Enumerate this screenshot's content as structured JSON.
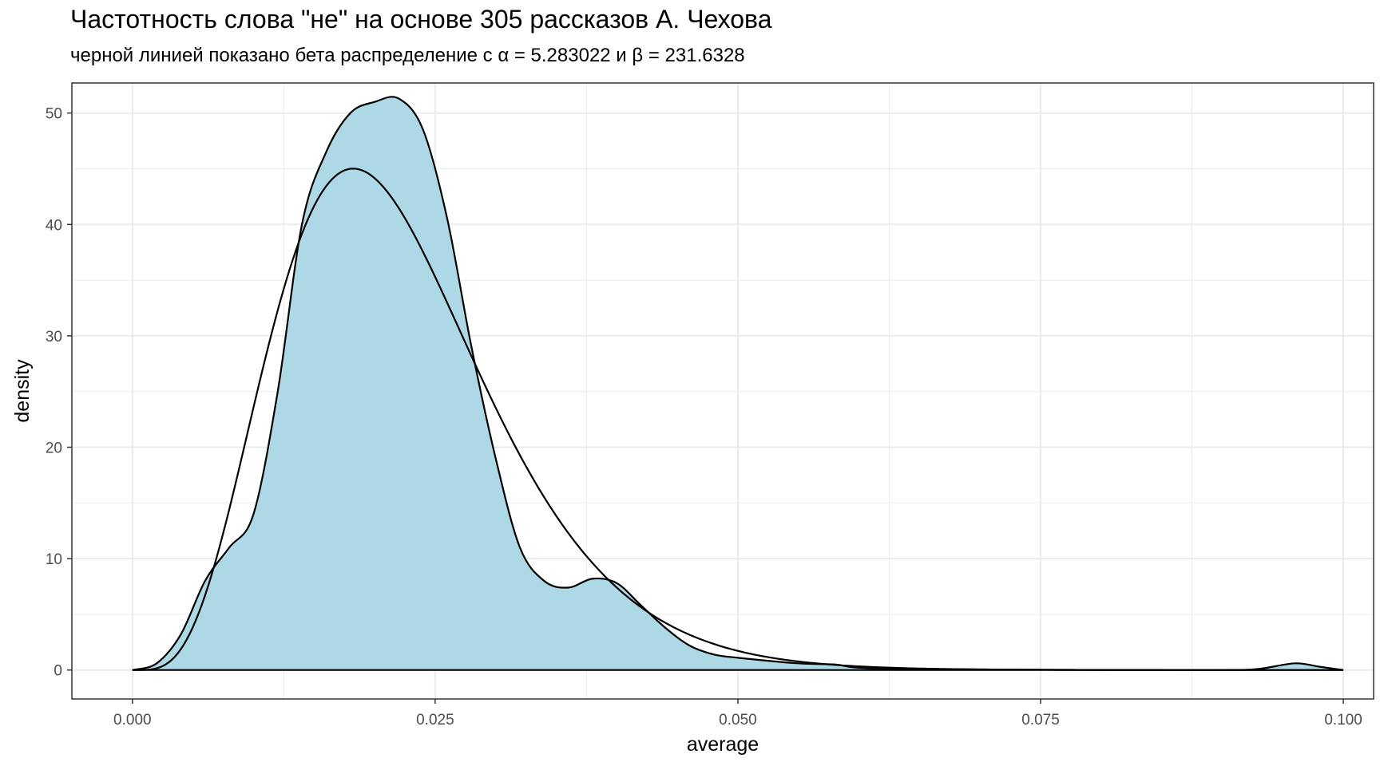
{
  "chart_data": {
    "type": "area",
    "title": "Частотность слова \"не\" на основе 305 рассказов А. Чехова",
    "subtitle": "черной линией показано бета распределение с α = 5.283022 и β = 231.6328",
    "xlabel": "average",
    "ylabel": "density",
    "xlim": [
      -0.005,
      0.1025
    ],
    "ylim": [
      -2.6,
      52.7
    ],
    "x_ticks": [
      0.0,
      0.025,
      0.05,
      0.075,
      0.1
    ],
    "x_tick_labels": [
      "0.000",
      "0.025",
      "0.050",
      "0.075",
      "0.100"
    ],
    "y_ticks": [
      0,
      10,
      20,
      30,
      40,
      50
    ],
    "y_tick_labels": [
      "0",
      "10",
      "20",
      "30",
      "40",
      "50"
    ],
    "grid": true,
    "colors": {
      "fill": "#add8e6",
      "line": "#000000",
      "grid": "#ebebeb",
      "panel_border": "#333333"
    },
    "series": [
      {
        "kind": "density",
        "x": [
          0.0,
          0.002,
          0.004,
          0.006,
          0.008,
          0.01,
          0.012,
          0.014,
          0.016,
          0.018,
          0.02,
          0.022,
          0.024,
          0.026,
          0.028,
          0.03,
          0.032,
          0.034,
          0.036,
          0.038,
          0.04,
          0.042,
          0.044,
          0.046,
          0.048,
          0.05,
          0.055,
          0.058,
          0.06,
          0.065,
          0.07,
          0.08,
          0.09,
          0.093,
          0.096,
          0.098,
          0.1
        ],
        "y": [
          0.0,
          0.6,
          3.2,
          8.0,
          11.0,
          14.0,
          25.0,
          40.0,
          46.5,
          50.0,
          51.0,
          51.3,
          48.5,
          40.5,
          29.0,
          19.0,
          11.0,
          8.0,
          7.4,
          8.2,
          7.8,
          5.8,
          3.8,
          2.2,
          1.4,
          1.1,
          0.6,
          0.5,
          0.2,
          0.1,
          0.05,
          0.0,
          0.0,
          0.1,
          0.6,
          0.3,
          0.0
        ]
      },
      {
        "kind": "beta",
        "alpha": 5.283022,
        "beta": 231.6328,
        "x_from": 0.0,
        "x_to": 0.1
      }
    ]
  }
}
